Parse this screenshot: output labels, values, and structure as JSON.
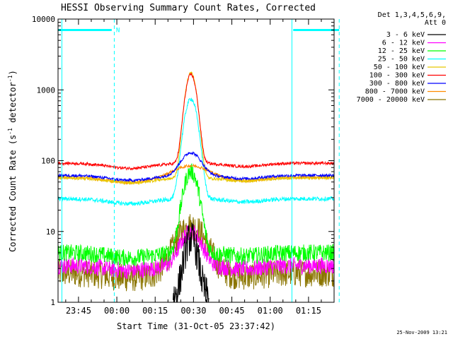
{
  "chart_data": {
    "type": "line",
    "title": "HESSI Observing Summary Count Rates, Corrected",
    "xlabel": "Start Time (31-Oct-05 23:37:42)",
    "ylabel_main": "Corrected Count Rate (s",
    "ylabel_sup1": "-1",
    "ylabel_mid": " detector",
    "ylabel_sup2": "-1",
    "ylabel_end": ")",
    "y_scale": "log",
    "ylim": [
      1,
      10000
    ],
    "xlim_minutes": [
      -8,
      100
    ],
    "y_ticks": [
      {
        "v": 1,
        "label": "1"
      },
      {
        "v": 10,
        "label": "10"
      },
      {
        "v": 100,
        "label": "100"
      },
      {
        "v": 1000,
        "label": "1000"
      },
      {
        "v": 10000,
        "label": "10000"
      }
    ],
    "x_ticks": [
      {
        "m": 0,
        "label": "23:45"
      },
      {
        "m": 15,
        "label": "00:00"
      },
      {
        "m": 30,
        "label": "00:15"
      },
      {
        "m": 45,
        "label": "00:30"
      },
      {
        "m": 60,
        "label": "00:45"
      },
      {
        "m": 75,
        "label": "01:00"
      },
      {
        "m": 90,
        "label": "01:15"
      }
    ],
    "legend_header": [
      "Det 1,3,4,5,6,9,",
      "Att 0"
    ],
    "legend_placement": "right-outside-top",
    "series": [
      {
        "name": "3 - 6 keV",
        "color": "#000000",
        "base": 1.2,
        "peak": 8,
        "width": 3,
        "noise": 0.25
      },
      {
        "name": "6 - 12 keV",
        "color": "#ff00ff",
        "base": 3.3,
        "peak": 10,
        "width": 5,
        "noise": 0.12
      },
      {
        "name": "12 - 25 keV",
        "color": "#00ff00",
        "base": 5,
        "peak": 70,
        "width": 3.5,
        "noise": 0.12
      },
      {
        "name": "25 - 50 keV",
        "color": "#00ffff",
        "base": 29,
        "peak": 750,
        "width": 3,
        "noise": 0.03
      },
      {
        "name": "50 - 100 keV",
        "color": "#e8c800",
        "base": 57,
        "peak": 1750,
        "width": 2.6,
        "noise": 0.02
      },
      {
        "name": "100 - 300 keV",
        "color": "#ff0000",
        "base": 92,
        "peak": 1650,
        "width": 2.6,
        "noise": 0.02
      },
      {
        "name": "300 - 800 keV",
        "color": "#0000ff",
        "base": 62,
        "peak": 130,
        "width": 5,
        "noise": 0.02
      },
      {
        "name": "800 - 7000 keV",
        "color": "#ff8c00",
        "base": 58,
        "peak": 85,
        "width": 9,
        "noise": 0.02
      },
      {
        "name": "7000 - 20000 keV",
        "color": "#8b7500",
        "base": 2.6,
        "peak": 12,
        "width": 7,
        "noise": 0.2
      }
    ],
    "peak_time_minutes": 44,
    "night_markers_minutes": [
      -6.5,
      14,
      83.5,
      102
    ],
    "saa_segments": [
      {
        "from_minutes": -8,
        "to_minutes": 13,
        "label": "N"
      },
      {
        "from_minutes": 84,
        "to_minutes": 102,
        "label": ""
      }
    ],
    "saa_level": 7000,
    "overlay_color": "#00ffff"
  },
  "footer": {
    "date_stamp": "25-Nov-2009 13:21"
  }
}
